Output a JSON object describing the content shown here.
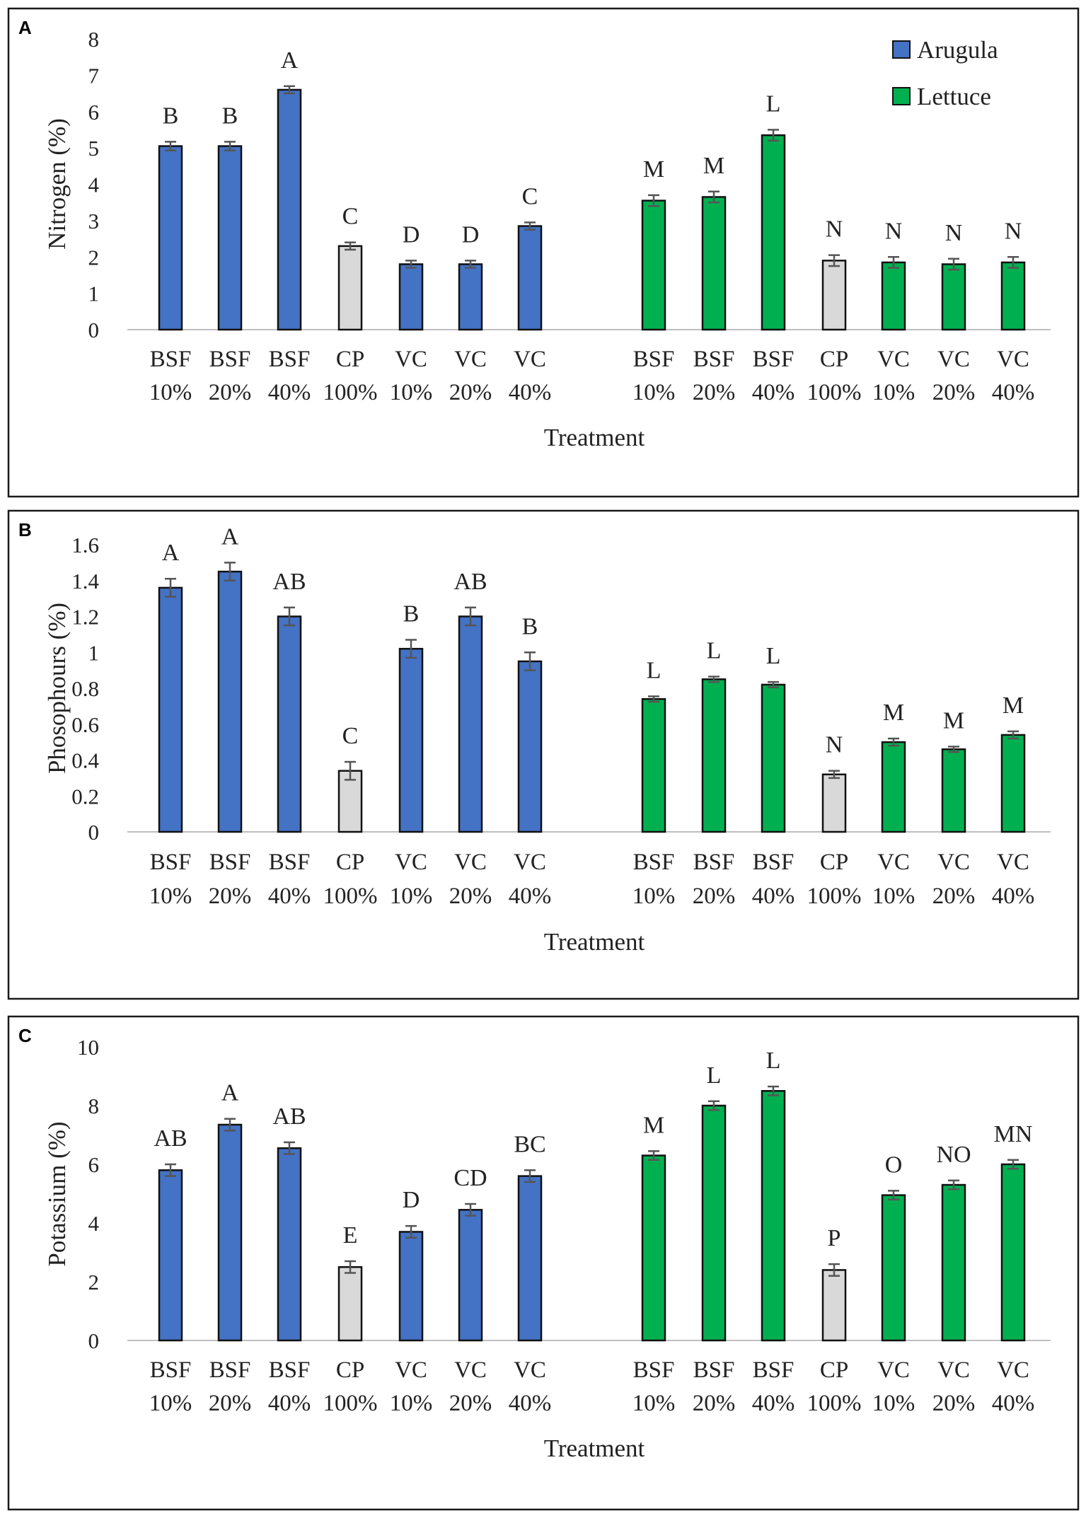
{
  "legend": {
    "items": [
      {
        "label": "Arugula",
        "color": "#4472C4"
      },
      {
        "label": "Lettuce",
        "color": "#00B050"
      }
    ]
  },
  "colors": {
    "arugula": "#4472C4",
    "lettuce": "#00B050",
    "control": "#D9D9D9"
  },
  "chart_data": [
    {
      "panel": "A",
      "type": "bar",
      "ylabel": "Nitrogen (%)",
      "xlabel": "Treatment",
      "ylim": [
        0,
        8
      ],
      "yticks": [
        0,
        1,
        2,
        3,
        4,
        5,
        6,
        7,
        8
      ],
      "categories": [
        [
          "BSF",
          "10%"
        ],
        [
          "BSF",
          "20%"
        ],
        [
          "BSF",
          "40%"
        ],
        [
          "CP",
          "100%"
        ],
        [
          "VC",
          "10%"
        ],
        [
          "VC",
          "20%"
        ],
        [
          "VC",
          "40%"
        ]
      ],
      "series": [
        {
          "name": "Arugula",
          "values": [
            5.05,
            5.05,
            6.6,
            2.3,
            1.8,
            1.8,
            2.85
          ],
          "errors": [
            0.12,
            0.12,
            0.1,
            0.1,
            0.1,
            0.1,
            0.1
          ],
          "letters": [
            "B",
            "B",
            "A",
            "C",
            "D",
            "D",
            "C"
          ]
        },
        {
          "name": "Lettuce",
          "values": [
            3.55,
            3.65,
            5.35,
            1.9,
            1.85,
            1.8,
            1.85
          ],
          "errors": [
            0.15,
            0.15,
            0.15,
            0.15,
            0.15,
            0.15,
            0.15
          ],
          "letters": [
            "M",
            "M",
            "L",
            "N",
            "N",
            "N",
            "N"
          ]
        }
      ]
    },
    {
      "panel": "B",
      "type": "bar",
      "ylabel": "Phosophours (%)",
      "xlabel": "Treatment",
      "ylim": [
        0,
        1.6
      ],
      "yticks": [
        "0",
        "0.2",
        "0.4",
        "0.6",
        "0.8",
        "1",
        "1.2",
        "1.4",
        "1.6"
      ],
      "categories": [
        [
          "BSF",
          "10%"
        ],
        [
          "BSF",
          "20%"
        ],
        [
          "BSF",
          "40%"
        ],
        [
          "CP",
          "100%"
        ],
        [
          "VC",
          "10%"
        ],
        [
          "VC",
          "20%"
        ],
        [
          "VC",
          "40%"
        ]
      ],
      "series": [
        {
          "name": "Arugula",
          "values": [
            1.36,
            1.45,
            1.2,
            0.34,
            1.02,
            1.2,
            0.95
          ],
          "errors": [
            0.05,
            0.05,
            0.05,
            0.05,
            0.05,
            0.05,
            0.05
          ],
          "letters": [
            "A",
            "A",
            "AB",
            "C",
            "B",
            "AB",
            "B"
          ]
        },
        {
          "name": "Lettuce",
          "values": [
            0.74,
            0.85,
            0.82,
            0.32,
            0.5,
            0.46,
            0.54
          ],
          "errors": [
            0.015,
            0.015,
            0.015,
            0.02,
            0.02,
            0.015,
            0.02
          ],
          "letters": [
            "L",
            "L",
            "L",
            "N",
            "M",
            "M",
            "M"
          ]
        }
      ]
    },
    {
      "panel": "C",
      "type": "bar",
      "ylabel": "Potassium (%)",
      "xlabel": "Treatment",
      "ylim": [
        0,
        10
      ],
      "yticks": [
        0,
        2,
        4,
        6,
        8,
        10
      ],
      "categories": [
        [
          "BSF",
          "10%"
        ],
        [
          "BSF",
          "20%"
        ],
        [
          "BSF",
          "40%"
        ],
        [
          "CP",
          "100%"
        ],
        [
          "VC",
          "10%"
        ],
        [
          "VC",
          "20%"
        ],
        [
          "VC",
          "40%"
        ]
      ],
      "series": [
        {
          "name": "Arugula",
          "values": [
            5.8,
            7.35,
            6.55,
            2.5,
            3.7,
            4.45,
            5.6
          ],
          "errors": [
            0.2,
            0.2,
            0.2,
            0.2,
            0.2,
            0.2,
            0.2
          ],
          "letters": [
            "AB",
            "A",
            "AB",
            "E",
            "D",
            "CD",
            "BC"
          ]
        },
        {
          "name": "Lettuce",
          "values": [
            6.3,
            8.0,
            8.5,
            2.4,
            4.95,
            5.3,
            6.0
          ],
          "errors": [
            0.15,
            0.15,
            0.15,
            0.2,
            0.15,
            0.15,
            0.15
          ],
          "letters": [
            "M",
            "L",
            "L",
            "P",
            "O",
            "NO",
            "MN"
          ]
        }
      ]
    }
  ]
}
